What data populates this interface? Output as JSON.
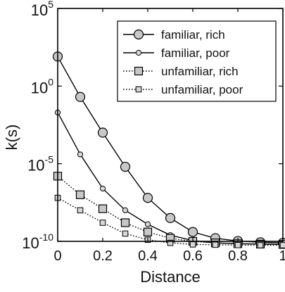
{
  "chart_data": {
    "type": "line",
    "title": "",
    "xlabel": "Distance",
    "ylabel": "k(s)",
    "y_scale": "log10",
    "xlim": [
      0,
      1
    ],
    "ylim_exponent": [
      -10,
      5
    ],
    "x_ticks": [
      {
        "value": 0,
        "label": "0"
      },
      {
        "value": 0.2,
        "label": "0.2"
      },
      {
        "value": 0.4,
        "label": "0.4"
      },
      {
        "value": 0.6,
        "label": "0.6"
      },
      {
        "value": 0.8,
        "label": "0.8"
      },
      {
        "value": 1,
        "label": "1"
      }
    ],
    "y_ticks": [
      {
        "exp": 5,
        "base": "10",
        "sup": "5"
      },
      {
        "exp": 0,
        "base": "10",
        "sup": "0"
      },
      {
        "exp": -5,
        "base": "10",
        "sup": "-5"
      },
      {
        "exp": -10,
        "base": "10",
        "sup": "-10"
      }
    ],
    "grid": false,
    "legend_position": "top-right",
    "x": [
      0,
      0.1,
      0.2,
      0.3,
      0.4,
      0.5,
      0.6,
      0.7,
      0.8,
      0.9,
      1.0
    ],
    "series": [
      {
        "name": "familiar, rich",
        "line_style": "solid",
        "marker": "circle",
        "marker_size": "large",
        "marker_fill": "#c8c8c8",
        "log10_values": [
          1.9,
          -0.7,
          -3.0,
          -5.2,
          -7.2,
          -8.5,
          -9.4,
          -9.8,
          -9.98,
          -10.06,
          -10.1
        ]
      },
      {
        "name": "familiar, poor",
        "line_style": "solid",
        "marker": "circle",
        "marker_size": "small",
        "marker_fill": "#d8d8d8",
        "log10_values": [
          -1.7,
          -4.4,
          -6.6,
          -8.0,
          -8.9,
          -9.6,
          -9.95,
          -10.1,
          -10.15,
          -10.18,
          -10.2
        ]
      },
      {
        "name": "unfamiliar, rich",
        "line_style": "dotted",
        "marker": "square",
        "marker_size": "large",
        "marker_fill": "#c8c8c8",
        "log10_values": [
          -5.8,
          -7.0,
          -7.9,
          -8.8,
          -9.4,
          -9.8,
          -10.0,
          -10.1,
          -10.15,
          -10.18,
          -10.2
        ]
      },
      {
        "name": "unfamiliar, poor",
        "line_style": "dotted",
        "marker": "square",
        "marker_size": "small",
        "marker_fill": "#d8d8d8",
        "log10_values": [
          -7.2,
          -8.0,
          -8.8,
          -9.5,
          -9.9,
          -10.1,
          -10.2,
          -10.22,
          -10.24,
          -10.25,
          -10.25
        ]
      }
    ]
  }
}
